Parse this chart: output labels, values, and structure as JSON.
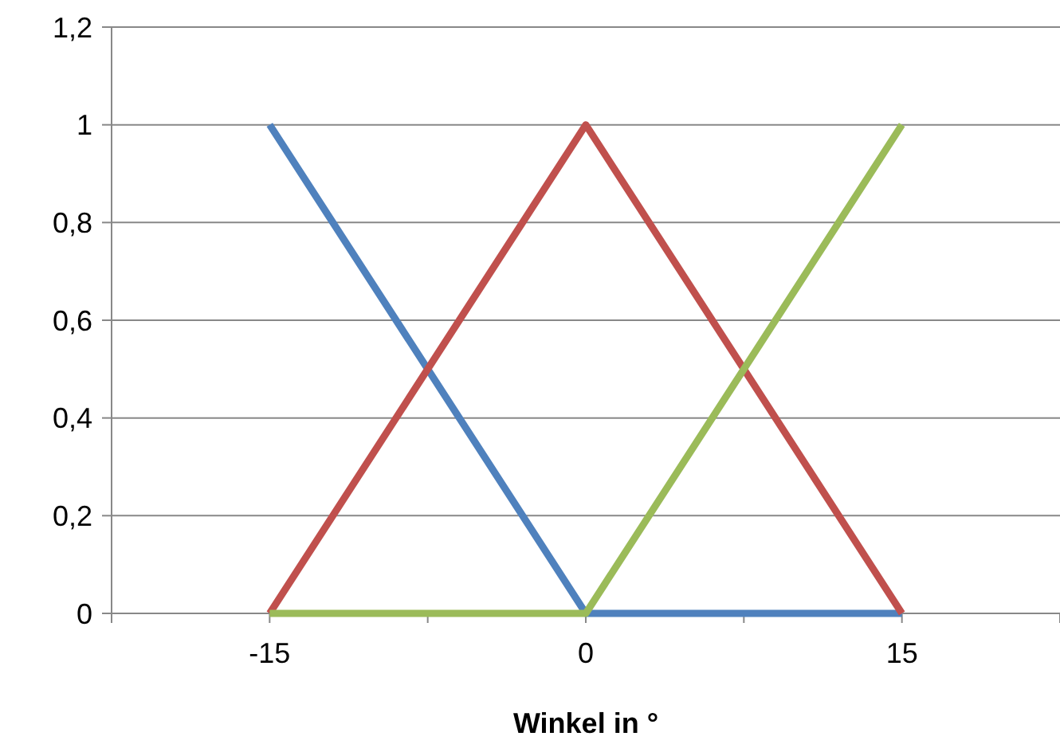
{
  "chart_data": {
    "type": "line",
    "xlabel": "Winkel in °",
    "xlim": [
      -22.5,
      22.5
    ],
    "xticks": [
      {
        "value": -22.5,
        "label": null
      },
      -15,
      {
        "value": -7.5,
        "label": null
      },
      0,
      {
        "value": 7.5,
        "label": null
      },
      15,
      {
        "value": 22.5,
        "label": null
      }
    ],
    "ylim": [
      0,
      1.2
    ],
    "yticks": [
      {
        "value": 0,
        "label": "0"
      },
      {
        "value": 0.2,
        "label": "0,2"
      },
      {
        "value": 0.4,
        "label": "0,4"
      },
      {
        "value": 0.6,
        "label": "0,6"
      },
      {
        "value": 0.8,
        "label": "0,8"
      },
      {
        "value": 1,
        "label": "1"
      },
      {
        "value": 1.2,
        "label": "1,2"
      }
    ],
    "grid": "y",
    "marker": "none",
    "line_style": "solid",
    "series": [
      {
        "color": "#4f81bd",
        "x": [
          -15,
          0,
          15
        ],
        "values": [
          1,
          0,
          0
        ]
      },
      {
        "color": "#c0504d",
        "x": [
          -15,
          0,
          15
        ],
        "values": [
          0,
          1,
          0
        ]
      },
      {
        "color": "#9bbb59",
        "x": [
          -15,
          0,
          15
        ],
        "values": [
          0,
          0,
          1
        ]
      }
    ]
  }
}
